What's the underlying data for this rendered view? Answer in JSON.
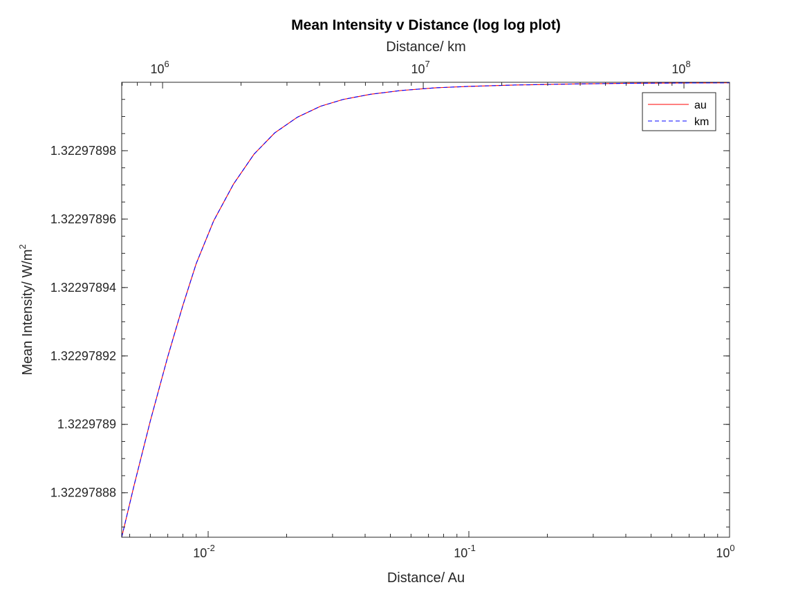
{
  "chart_data": {
    "type": "line",
    "title": "Mean Intensity v Distance  (log log plot)",
    "xlabel": "Distance/ Au",
    "x2label": "Distance/ km",
    "ylabel": "Mean Intensity/ W/m",
    "ylabel_sup": "2",
    "xscale": "log",
    "x2scale": "log",
    "yscale": "linear",
    "xlim": [
      0.00466,
      1
    ],
    "x2lim": [
      697000,
      149600000
    ],
    "ylim": [
      1.322978867,
      1.322979
    ],
    "xticks": [
      {
        "value": 0.01,
        "base": "10",
        "exp": "-2"
      },
      {
        "value": 0.1,
        "base": "10",
        "exp": "-1"
      },
      {
        "value": 1,
        "base": "10",
        "exp": "0"
      }
    ],
    "x2ticks": [
      {
        "value": 1000000,
        "base": "10",
        "exp": "6"
      },
      {
        "value": 10000000,
        "base": "10",
        "exp": "7"
      },
      {
        "value": 100000000,
        "base": "10",
        "exp": "8"
      }
    ],
    "yticks": [
      {
        "value": 1.32297888,
        "label": "1.32297888"
      },
      {
        "value": 1.3229789,
        "label": "1.3229789"
      },
      {
        "value": 1.32297892,
        "label": "1.32297892"
      },
      {
        "value": 1.32297894,
        "label": "1.32297894"
      },
      {
        "value": 1.32297896,
        "label": "1.32297896"
      },
      {
        "value": 1.32297898,
        "label": "1.32297898"
      }
    ],
    "grid": false,
    "legend_position": "top-right",
    "series": [
      {
        "name": "au",
        "color": "#ff0000",
        "style": "solid",
        "x": [
          0.00466,
          0.0052,
          0.006,
          0.007,
          0.008,
          0.009,
          0.0105,
          0.0125,
          0.015,
          0.018,
          0.022,
          0.027,
          0.033,
          0.042,
          0.055,
          0.075,
          0.1,
          0.15,
          0.25,
          0.4,
          0.7,
          1.0
        ],
        "y": [
          1.322978867,
          1.3229788822,
          1.322978901,
          1.3229789198,
          1.3229789348,
          1.322978947,
          1.3229789595,
          1.3229789702,
          1.322978979,
          1.3229789852,
          1.3229789898,
          1.322978993,
          1.322978995,
          1.3229789965,
          1.3229789976,
          1.3229789984,
          1.3229789988,
          1.3229789992,
          1.3229789995,
          1.3229789997,
          1.3229789998,
          1.32297899985
        ]
      },
      {
        "name": "km",
        "color": "#0000ff",
        "style": "dashed",
        "x": [
          0.00466,
          0.0052,
          0.006,
          0.007,
          0.008,
          0.009,
          0.0105,
          0.0125,
          0.015,
          0.018,
          0.022,
          0.027,
          0.033,
          0.042,
          0.055,
          0.075,
          0.1,
          0.15,
          0.25,
          0.4,
          0.7,
          1.0
        ],
        "y": [
          1.322978867,
          1.3229788822,
          1.322978901,
          1.3229789198,
          1.3229789348,
          1.322978947,
          1.3229789595,
          1.3229789702,
          1.322978979,
          1.3229789852,
          1.3229789898,
          1.322978993,
          1.322978995,
          1.3229789965,
          1.3229789976,
          1.3229789984,
          1.3229789988,
          1.3229789992,
          1.3229789995,
          1.3229789997,
          1.3229789998,
          1.32297899985
        ]
      }
    ]
  }
}
